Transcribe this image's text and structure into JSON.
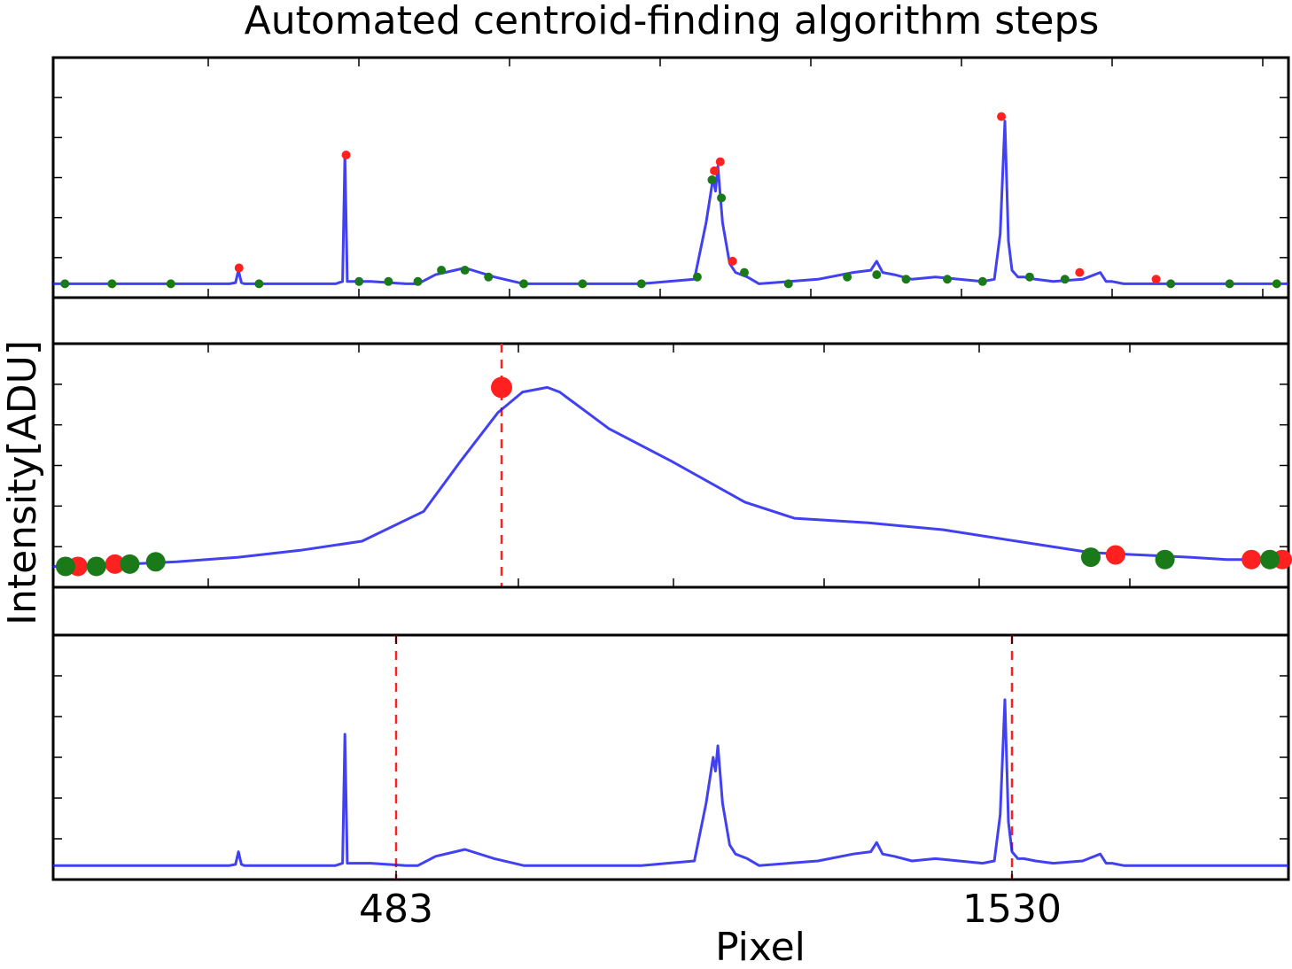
{
  "title": "Automated centroid-finding algorithm steps",
  "ylabel": "Intensity[ADU]",
  "xlabel": "Pixel",
  "colors": {
    "line": "#2020ee",
    "peak_marker": "#ff2020",
    "baseline_marker": "#1a7a1a",
    "centroid_line": "#ff2020"
  },
  "chart_data": [
    {
      "type": "line",
      "panel": "raw spectrum with detected maxima and minima",
      "xlim": [
        -100,
        2000
      ],
      "ylim": [
        0,
        1
      ],
      "y_tick_labels_shown": false,
      "series": [
        {
          "values_x": [
            -100,
            100,
            200,
            210,
            215,
            220,
            225,
            240,
            300,
            380,
            392,
            396,
            400,
            404,
            440,
            500,
            520,
            550,
            600,
            650,
            700,
            750,
            800,
            900,
            990,
            1010,
            1022,
            1026,
            1030,
            1038,
            1050,
            1060,
            1080,
            1100,
            1200,
            1260,
            1290,
            1300,
            1310,
            1330,
            1360,
            1400,
            1440,
            1480,
            1500,
            1510,
            1518,
            1524,
            1530,
            1540,
            1550,
            1570,
            1600,
            1650,
            1680,
            1690,
            1700,
            1720,
            1800,
            1900,
            2000
          ],
          "values_y": [
            0.03,
            0.03,
            0.03,
            0.035,
            0.09,
            0.035,
            0.03,
            0.03,
            0.03,
            0.03,
            0.04,
            0.6,
            0.04,
            0.04,
            0.04,
            0.03,
            0.03,
            0.07,
            0.1,
            0.06,
            0.03,
            0.03,
            0.03,
            0.03,
            0.05,
            0.3,
            0.5,
            0.44,
            0.55,
            0.3,
            0.12,
            0.08,
            0.06,
            0.03,
            0.05,
            0.08,
            0.09,
            0.13,
            0.08,
            0.07,
            0.05,
            0.06,
            0.05,
            0.04,
            0.05,
            0.25,
            0.75,
            0.22,
            0.09,
            0.06,
            0.06,
            0.05,
            0.04,
            0.05,
            0.08,
            0.04,
            0.04,
            0.03,
            0.03,
            0.03,
            0.03
          ]
        }
      ],
      "peak_markers": [
        {
          "x": 216,
          "y": 0.1
        },
        {
          "x": 398,
          "y": 0.6
        },
        {
          "x": 1024,
          "y": 0.53
        },
        {
          "x": 1034,
          "y": 0.57
        },
        {
          "x": 1055,
          "y": 0.13
        },
        {
          "x": 1512,
          "y": 0.77
        },
        {
          "x": 1645,
          "y": 0.08
        },
        {
          "x": 1775,
          "y": 0.05
        }
      ],
      "baseline_markers": [
        {
          "x": -80,
          "y": 0.03
        },
        {
          "x": 0,
          "y": 0.03
        },
        {
          "x": 100,
          "y": 0.03
        },
        {
          "x": 250,
          "y": 0.03
        },
        {
          "x": 420,
          "y": 0.04
        },
        {
          "x": 470,
          "y": 0.04
        },
        {
          "x": 520,
          "y": 0.04
        },
        {
          "x": 560,
          "y": 0.09
        },
        {
          "x": 600,
          "y": 0.09
        },
        {
          "x": 640,
          "y": 0.06
        },
        {
          "x": 700,
          "y": 0.03
        },
        {
          "x": 800,
          "y": 0.03
        },
        {
          "x": 900,
          "y": 0.03
        },
        {
          "x": 995,
          "y": 0.06
        },
        {
          "x": 1020,
          "y": 0.49
        },
        {
          "x": 1036,
          "y": 0.41
        },
        {
          "x": 1075,
          "y": 0.08
        },
        {
          "x": 1150,
          "y": 0.03
        },
        {
          "x": 1250,
          "y": 0.06
        },
        {
          "x": 1300,
          "y": 0.07
        },
        {
          "x": 1350,
          "y": 0.05
        },
        {
          "x": 1420,
          "y": 0.05
        },
        {
          "x": 1480,
          "y": 0.04
        },
        {
          "x": 1560,
          "y": 0.06
        },
        {
          "x": 1620,
          "y": 0.05
        },
        {
          "x": 1800,
          "y": 0.03
        },
        {
          "x": 1900,
          "y": 0.03
        },
        {
          "x": 1980,
          "y": 0.03
        }
      ]
    },
    {
      "type": "line",
      "panel": "smoothed peak profile with centroid",
      "xlim": [
        0,
        1
      ],
      "ylim": [
        0,
        1
      ],
      "y_tick_labels_shown": false,
      "series": [
        {
          "values_x": [
            0,
            0.03,
            0.06,
            0.1,
            0.15,
            0.2,
            0.25,
            0.3,
            0.33,
            0.36,
            0.38,
            0.39,
            0.4,
            0.41,
            0.42,
            0.43,
            0.45,
            0.5,
            0.56,
            0.6,
            0.66,
            0.72,
            0.78,
            0.84,
            0.88,
            0.92,
            0.95,
            0.98,
            1
          ],
          "values_y": [
            0.06,
            0.06,
            0.07,
            0.08,
            0.1,
            0.13,
            0.17,
            0.3,
            0.52,
            0.73,
            0.82,
            0.83,
            0.84,
            0.82,
            0.78,
            0.74,
            0.66,
            0.52,
            0.34,
            0.27,
            0.25,
            0.22,
            0.17,
            0.12,
            0.11,
            0.1,
            0.09,
            0.09,
            0.08
          ]
        }
      ],
      "centroid_marker": {
        "x": 0.363,
        "y": 0.84
      },
      "peak_markers": [
        {
          "x": 0.02,
          "y": 0.06
        },
        {
          "x": 0.05,
          "y": 0.07
        },
        {
          "x": 0.86,
          "y": 0.11
        },
        {
          "x": 0.97,
          "y": 0.09
        },
        {
          "x": 0.995,
          "y": 0.09
        }
      ],
      "baseline_markers": [
        {
          "x": 0.01,
          "y": 0.06
        },
        {
          "x": 0.035,
          "y": 0.06
        },
        {
          "x": 0.062,
          "y": 0.07
        },
        {
          "x": 0.083,
          "y": 0.08
        },
        {
          "x": 0.84,
          "y": 0.1
        },
        {
          "x": 0.9,
          "y": 0.09
        },
        {
          "x": 0.985,
          "y": 0.09
        }
      ],
      "centroid_line_x": 0.363
    },
    {
      "type": "line",
      "panel": "spectrum with final centroids",
      "xlim": [
        -100,
        2000
      ],
      "ylim": [
        0,
        1
      ],
      "y_tick_labels_shown": false,
      "x_tick_labels": [
        "483",
        "1530"
      ],
      "x_ticks": [
        483,
        1530
      ],
      "series": [
        {
          "values_x": [
            -100,
            100,
            200,
            210,
            215,
            220,
            225,
            240,
            300,
            380,
            392,
            396,
            400,
            404,
            440,
            500,
            520,
            550,
            600,
            650,
            700,
            750,
            800,
            900,
            990,
            1010,
            1022,
            1026,
            1030,
            1038,
            1050,
            1060,
            1080,
            1100,
            1200,
            1260,
            1290,
            1300,
            1310,
            1330,
            1360,
            1400,
            1440,
            1480,
            1500,
            1510,
            1518,
            1524,
            1530,
            1540,
            1550,
            1570,
            1600,
            1650,
            1680,
            1690,
            1700,
            1720,
            1800,
            1900,
            2000
          ],
          "values_y": [
            0.03,
            0.03,
            0.03,
            0.035,
            0.09,
            0.035,
            0.03,
            0.03,
            0.03,
            0.03,
            0.04,
            0.6,
            0.04,
            0.04,
            0.04,
            0.03,
            0.03,
            0.07,
            0.1,
            0.06,
            0.03,
            0.03,
            0.03,
            0.03,
            0.05,
            0.3,
            0.5,
            0.44,
            0.55,
            0.3,
            0.12,
            0.08,
            0.06,
            0.03,
            0.05,
            0.08,
            0.09,
            0.13,
            0.08,
            0.07,
            0.05,
            0.06,
            0.05,
            0.04,
            0.05,
            0.25,
            0.75,
            0.22,
            0.09,
            0.06,
            0.06,
            0.05,
            0.04,
            0.05,
            0.08,
            0.04,
            0.04,
            0.03,
            0.03,
            0.03,
            0.03
          ]
        }
      ],
      "centroid_lines_x": [
        483,
        1530
      ]
    }
  ]
}
